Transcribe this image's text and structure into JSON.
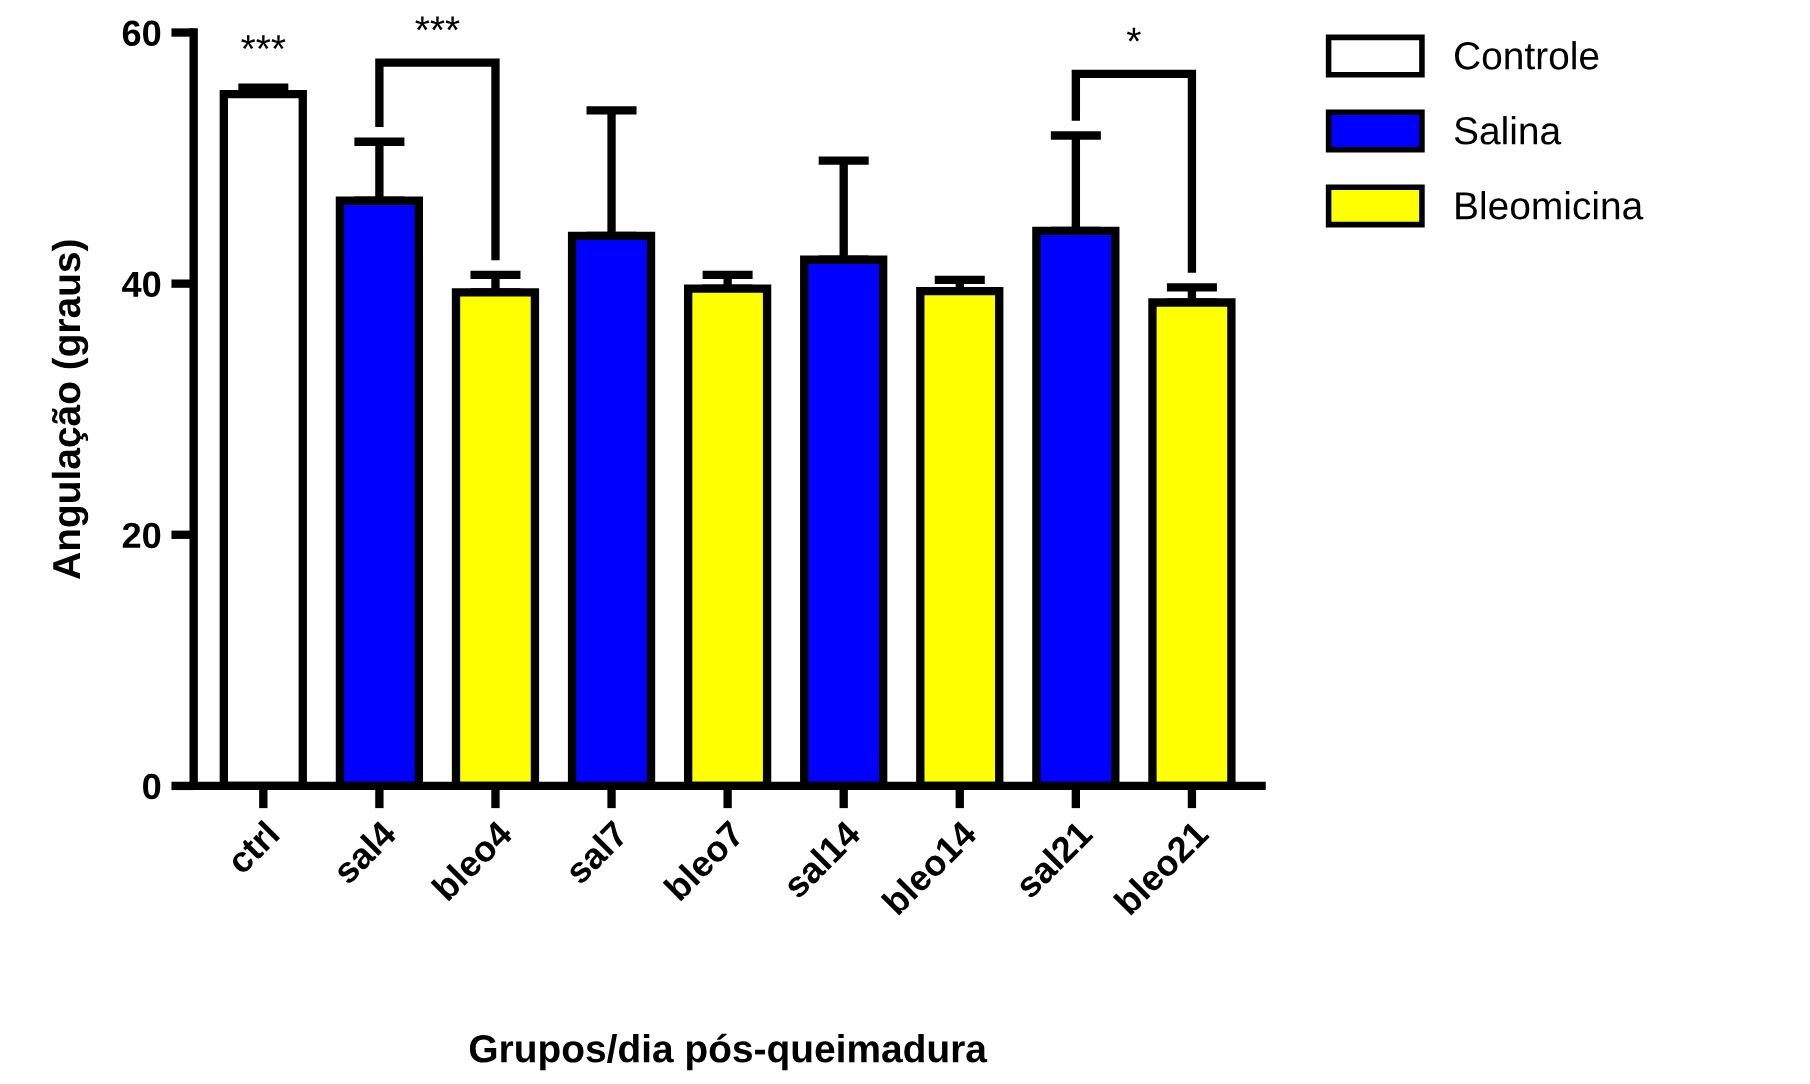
{
  "chart_data": {
    "type": "bar",
    "xlabel": "Grupos/dia pós-queimadura",
    "ylabel": "Angulação (graus)",
    "categories": [
      "ctrl",
      "sal4",
      "bleo4",
      "sal7",
      "bleo7",
      "sal14",
      "bleo14",
      "sal21",
      "bleo21"
    ],
    "series": [
      {
        "name": "Controle",
        "color": "#ffffff",
        "values": [
          55.1,
          null,
          null,
          null,
          null,
          null,
          null,
          null,
          null
        ],
        "errors": [
          [
            55.1,
            55.6
          ],
          null,
          null,
          null,
          null,
          null,
          null,
          null,
          null
        ]
      },
      {
        "name": "Salina",
        "color": "#0000ff",
        "values": [
          null,
          46.6,
          null,
          43.8,
          null,
          41.9,
          null,
          44.2,
          null
        ],
        "errors": [
          null,
          [
            46.6,
            51.3
          ],
          null,
          [
            43.8,
            53.8
          ],
          null,
          [
            41.9,
            49.8
          ],
          null,
          [
            44.2,
            51.8
          ],
          null
        ]
      },
      {
        "name": "Bleomicina",
        "color": "#ffff00",
        "values": [
          null,
          null,
          39.3,
          null,
          39.6,
          null,
          39.4,
          null,
          38.5
        ],
        "errors": [
          null,
          null,
          [
            39.3,
            40.7
          ],
          null,
          [
            39.6,
            40.7
          ],
          null,
          [
            39.4,
            40.3
          ],
          null,
          [
            38.5,
            39.7
          ]
        ]
      }
    ],
    "ylim": [
      0,
      60
    ],
    "yticks": [
      0,
      20,
      40,
      60
    ],
    "annotations": [
      "***",
      "***",
      "*"
    ],
    "legend": "top right",
    "grid": false
  }
}
